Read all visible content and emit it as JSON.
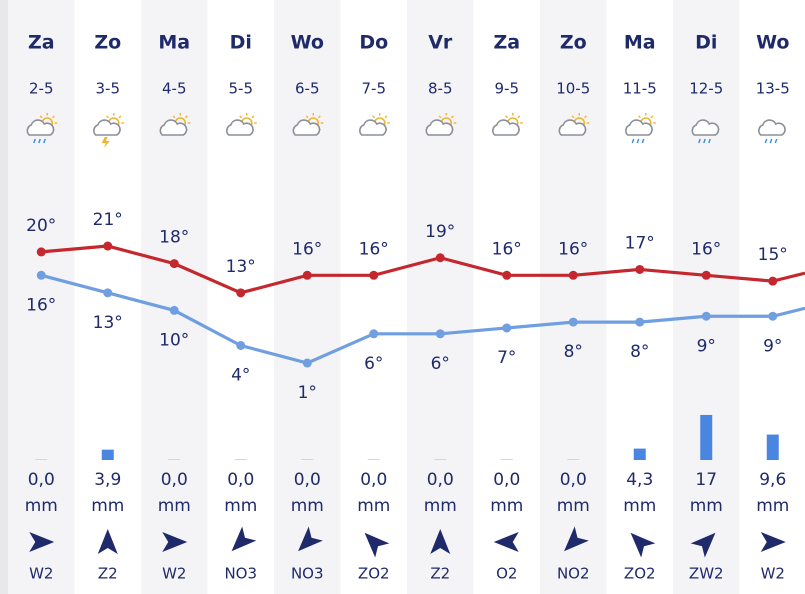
{
  "days": [
    {
      "day": "Za",
      "date": "2-5",
      "max": 20,
      "max_label": "20°",
      "min": 16,
      "min_label": "16°",
      "precip": 0,
      "precip_label": "0,0",
      "unit": "mm",
      "wind": "W2"
    },
    {
      "day": "Zo",
      "date": "3-5",
      "max": 21,
      "max_label": "21°",
      "min": 13,
      "min_label": "13°",
      "precip": 3.9,
      "precip_label": "3,9",
      "unit": "mm",
      "wind": "Z2"
    },
    {
      "day": "Ma",
      "date": "4-5",
      "max": 18,
      "max_label": "18°",
      "min": 10,
      "min_label": "10°",
      "precip": 0,
      "precip_label": "0,0",
      "unit": "mm",
      "wind": "W2"
    },
    {
      "day": "Di",
      "date": "5-5",
      "max": 13,
      "max_label": "13°",
      "min": 4,
      "min_label": "4°",
      "precip": 0,
      "precip_label": "0,0",
      "unit": "mm",
      "wind": "NO3"
    },
    {
      "day": "Wo",
      "date": "6-5",
      "max": 16,
      "max_label": "16°",
      "min": 1,
      "min_label": "1°",
      "precip": 0,
      "precip_label": "0,0",
      "unit": "mm",
      "wind": "NO3"
    },
    {
      "day": "Do",
      "date": "7-5",
      "max": 16,
      "max_label": "16°",
      "min": 6,
      "min_label": "6°",
      "precip": 0,
      "precip_label": "0,0",
      "unit": "mm",
      "wind": "ZO2"
    },
    {
      "day": "Vr",
      "date": "8-5",
      "max": 19,
      "max_label": "19°",
      "min": 6,
      "min_label": "6°",
      "precip": 0,
      "precip_label": "0,0",
      "unit": "mm",
      "wind": "Z2"
    },
    {
      "day": "Za",
      "date": "9-5",
      "max": 16,
      "max_label": "16°",
      "min": 7,
      "min_label": "7°",
      "precip": 0,
      "precip_label": "0,0",
      "unit": "mm",
      "wind": "O2"
    },
    {
      "day": "Zo",
      "date": "10-5",
      "max": 16,
      "max_label": "16°",
      "min": 8,
      "min_label": "8°",
      "precip": 0,
      "precip_label": "0,0",
      "unit": "mm",
      "wind": "NO2"
    },
    {
      "day": "Ma",
      "date": "11-5",
      "max": 17,
      "max_label": "17°",
      "min": 8,
      "min_label": "8°",
      "precip": 4.3,
      "precip_label": "4,3",
      "unit": "mm",
      "wind": "ZO2"
    },
    {
      "day": "Di",
      "date": "12-5",
      "max": 16,
      "max_label": "16°",
      "min": 9,
      "min_label": "9°",
      "precip": 17,
      "precip_label": "17",
      "unit": "mm",
      "wind": "ZW2"
    },
    {
      "day": "Wo",
      "date": "13-5",
      "max": 15,
      "max_label": "15°",
      "min": 9,
      "min_label": "9°",
      "precip": 9.6,
      "precip_label": "9,6",
      "unit": "mm",
      "wind": "W2"
    }
  ]
}
